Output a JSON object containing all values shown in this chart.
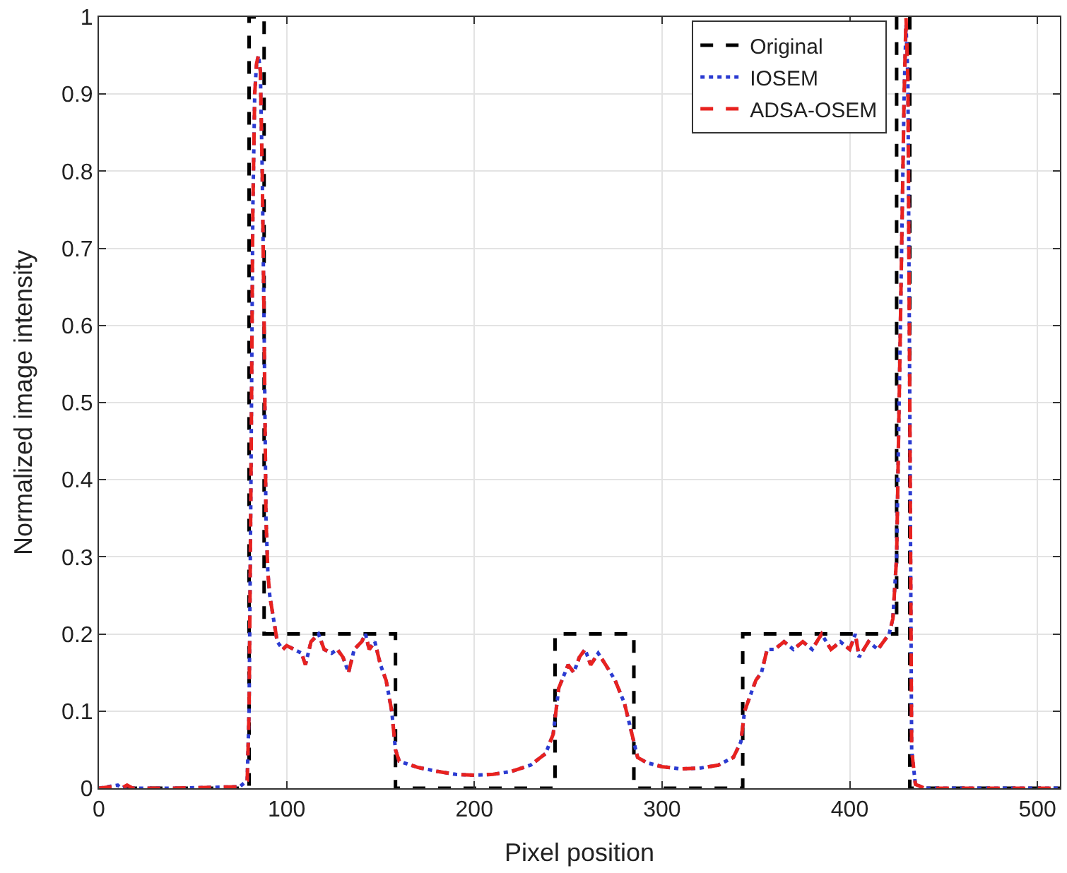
{
  "chart_data": {
    "type": "line",
    "xlabel": "Pixel position",
    "ylabel": "Normalized image intensity",
    "xlim": [
      0,
      512
    ],
    "xticks": [
      0,
      100,
      200,
      300,
      400,
      500
    ],
    "ylim": [
      0,
      1
    ],
    "yticks": [
      0,
      0.1,
      0.2,
      0.3,
      0.4,
      0.5,
      0.6,
      0.7,
      0.8,
      0.9,
      1
    ],
    "grid": true,
    "legend": "top right",
    "marker": "none",
    "series": [
      {
        "name": "Original",
        "color": "#000000",
        "line_style": "dashed",
        "x": [
          0,
          80,
          80,
          88,
          88,
          158,
          158,
          243,
          243,
          285,
          285,
          343,
          343,
          425,
          425,
          432,
          432,
          512
        ],
        "values": [
          0,
          0,
          1,
          1,
          0.2,
          0.2,
          0,
          0,
          0.2,
          0.2,
          0,
          0,
          0.2,
          0.2,
          1,
          1,
          0,
          0
        ]
      },
      {
        "name": "IOSEM",
        "color": "#2b3bd1",
        "line_style": "dotted",
        "x": [
          0,
          10,
          12,
          15,
          18,
          40,
          75,
          79,
          80,
          81,
          82,
          83,
          84,
          85,
          86,
          87,
          88,
          89,
          90,
          91,
          93,
          95,
          98,
          100,
          104,
          108,
          110,
          113,
          117,
          120,
          124,
          127,
          130,
          133,
          136,
          140,
          142,
          144,
          147,
          150,
          153,
          156,
          158,
          160,
          170,
          180,
          190,
          200,
          210,
          220,
          230,
          238,
          242,
          245,
          250,
          253,
          256,
          259,
          262,
          266,
          270,
          275,
          280,
          284,
          287,
          292,
          300,
          310,
          320,
          330,
          338,
          342,
          344,
          347,
          350,
          353,
          356,
          360,
          365,
          370,
          375,
          380,
          385,
          390,
          395,
          400,
          403,
          405,
          410,
          415,
          418,
          421,
          423,
          425,
          427,
          429,
          430,
          431,
          432,
          433,
          435,
          440,
          512
        ],
        "values": [
          0,
          0.004,
          0,
          0.003,
          0,
          0,
          0.002,
          0.01,
          0.1,
          0.4,
          0.75,
          0.9,
          0.94,
          0.95,
          0.93,
          0.8,
          0.6,
          0.35,
          0.28,
          0.25,
          0.22,
          0.19,
          0.18,
          0.185,
          0.18,
          0.175,
          0.16,
          0.19,
          0.2,
          0.18,
          0.175,
          0.18,
          0.17,
          0.15,
          0.18,
          0.19,
          0.2,
          0.18,
          0.19,
          0.16,
          0.14,
          0.1,
          0.05,
          0.035,
          0.027,
          0.022,
          0.018,
          0.017,
          0.018,
          0.022,
          0.03,
          0.045,
          0.07,
          0.13,
          0.16,
          0.15,
          0.17,
          0.18,
          0.16,
          0.175,
          0.16,
          0.14,
          0.11,
          0.07,
          0.04,
          0.033,
          0.028,
          0.025,
          0.026,
          0.03,
          0.04,
          0.06,
          0.1,
          0.12,
          0.14,
          0.15,
          0.18,
          0.18,
          0.19,
          0.18,
          0.19,
          0.18,
          0.2,
          0.18,
          0.19,
          0.18,
          0.2,
          0.17,
          0.19,
          0.18,
          0.19,
          0.2,
          0.22,
          0.3,
          0.6,
          0.9,
          0.99,
          0.92,
          0.5,
          0.05,
          0.005,
          0,
          0
        ]
      },
      {
        "name": "ADSA-OSEM",
        "color": "#e8221f",
        "line_style": "dashed",
        "x": [
          0,
          10,
          12,
          15,
          18,
          40,
          75,
          79,
          80,
          81,
          82,
          83,
          84,
          85,
          86,
          87,
          88,
          89,
          90,
          91,
          93,
          95,
          98,
          100,
          104,
          108,
          110,
          113,
          117,
          120,
          124,
          127,
          130,
          133,
          136,
          140,
          142,
          144,
          147,
          150,
          153,
          156,
          158,
          160,
          170,
          180,
          190,
          200,
          210,
          220,
          230,
          238,
          242,
          245,
          250,
          253,
          256,
          259,
          262,
          266,
          270,
          275,
          280,
          284,
          287,
          292,
          300,
          310,
          320,
          330,
          338,
          342,
          344,
          347,
          350,
          353,
          356,
          360,
          365,
          370,
          375,
          380,
          385,
          390,
          395,
          400,
          403,
          405,
          410,
          415,
          418,
          421,
          423,
          425,
          427,
          429,
          430,
          431,
          432,
          433,
          435,
          440,
          512
        ],
        "values": [
          0,
          0.003,
          0,
          0.004,
          0,
          0,
          0.002,
          0.01,
          0.1,
          0.4,
          0.75,
          0.9,
          0.94,
          0.95,
          0.93,
          0.8,
          0.6,
          0.35,
          0.28,
          0.25,
          0.22,
          0.19,
          0.18,
          0.185,
          0.18,
          0.175,
          0.16,
          0.19,
          0.2,
          0.18,
          0.175,
          0.18,
          0.17,
          0.15,
          0.18,
          0.19,
          0.2,
          0.18,
          0.19,
          0.16,
          0.14,
          0.1,
          0.05,
          0.035,
          0.027,
          0.022,
          0.018,
          0.017,
          0.018,
          0.022,
          0.03,
          0.045,
          0.07,
          0.13,
          0.16,
          0.15,
          0.17,
          0.18,
          0.16,
          0.175,
          0.16,
          0.14,
          0.11,
          0.07,
          0.04,
          0.033,
          0.028,
          0.025,
          0.026,
          0.03,
          0.04,
          0.06,
          0.1,
          0.12,
          0.14,
          0.15,
          0.18,
          0.18,
          0.19,
          0.18,
          0.19,
          0.18,
          0.2,
          0.18,
          0.19,
          0.18,
          0.2,
          0.17,
          0.19,
          0.18,
          0.19,
          0.2,
          0.22,
          0.3,
          0.6,
          0.9,
          1.0,
          0.92,
          0.5,
          0.05,
          0.005,
          0,
          0
        ]
      }
    ]
  }
}
